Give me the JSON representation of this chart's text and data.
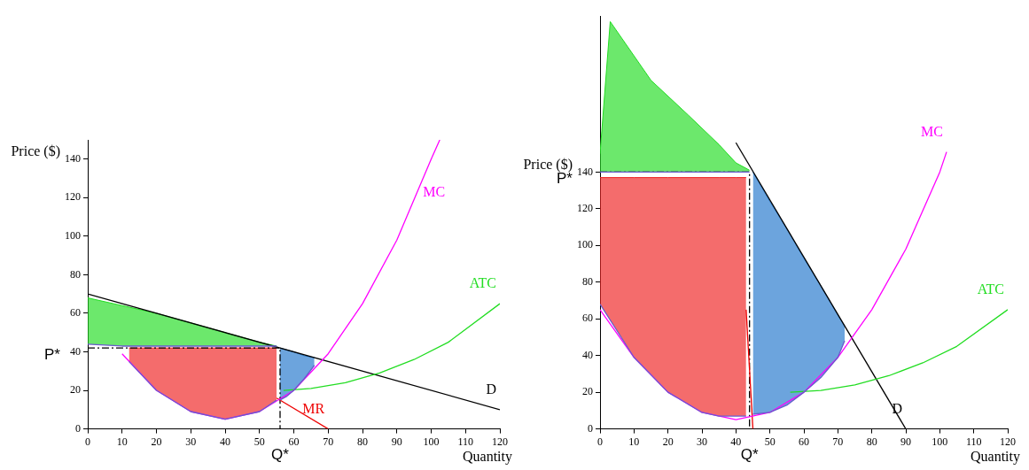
{
  "chart_data": [
    {
      "type": "line",
      "xlabel": "Quantity",
      "ylabel": "Price ($)",
      "xlim": [
        0,
        120
      ],
      "ylim": [
        0,
        150
      ],
      "xticks": [
        0,
        10,
        20,
        30,
        40,
        50,
        60,
        70,
        80,
        90,
        100,
        110,
        120
      ],
      "yticks": [
        0,
        20,
        40,
        60,
        80,
        100,
        120,
        140
      ],
      "grid": false,
      "legend": false,
      "marker": "none",
      "series": [
        {
          "color": "#6a5acd",
          "x": [
            0,
            10,
            20,
            30,
            40,
            50,
            55
          ],
          "values": [
            44,
            43,
            43,
            43,
            43,
            43,
            43
          ]
        },
        {
          "type": "area",
          "color": "#22dd22",
          "x": [
            0,
            10,
            20,
            30,
            40,
            50,
            55
          ],
          "values": [
            68,
            64,
            60,
            55,
            50,
            45,
            43
          ]
        },
        {
          "color": "#6a5acd",
          "x": [
            12,
            20,
            30,
            40,
            50,
            55
          ],
          "values": [
            35,
            20,
            9,
            5,
            9,
            15
          ]
        },
        {
          "type": "area",
          "color": "#ee2222",
          "x": [
            12,
            20,
            30,
            40,
            50,
            55
          ],
          "values": [
            42,
            42,
            42,
            42,
            42,
            42
          ]
        },
        {
          "color": "#6a5acd",
          "x": [
            56,
            58,
            60,
            63,
            66
          ],
          "values": [
            15,
            17,
            20,
            26,
            33
          ]
        },
        {
          "type": "area",
          "color": "#2277cc",
          "x": [
            56,
            58,
            60,
            63,
            66
          ],
          "values": [
            42,
            41,
            40,
            38,
            37
          ]
        },
        {
          "name": "MC",
          "color": "#ff00ff",
          "x": [
            10,
            20,
            30,
            40,
            50,
            60,
            70,
            80,
            90,
            100,
            102.5
          ],
          "values": [
            39,
            20,
            9,
            5,
            9,
            20,
            39,
            65,
            98,
            140,
            150
          ]
        },
        {
          "name": "ATC",
          "color": "#22dd22",
          "x": [
            57,
            65,
            75,
            85,
            95,
            105,
            120
          ],
          "values": [
            20,
            21,
            24,
            29,
            36,
            45,
            65
          ]
        },
        {
          "name": "D",
          "color": "#000000",
          "x": [
            0,
            120
          ],
          "values": [
            70,
            10
          ]
        },
        {
          "name": "MR",
          "color": "#ee0000",
          "x": [
            55,
            70
          ],
          "values": [
            16,
            0
          ]
        },
        {
          "color": "#000000",
          "line_style": "dashed",
          "x": [
            0,
            56,
            56
          ],
          "values": [
            42,
            42,
            0
          ]
        }
      ],
      "annotations": [
        {
          "text": "P*",
          "x": 0,
          "y": 42
        },
        {
          "text": "Q*",
          "x": 56,
          "y": 0
        }
      ]
    },
    {
      "type": "line",
      "xlabel": "Quantity",
      "ylabel": "Price ($)",
      "xlim": [
        0,
        120
      ],
      "ylim": [
        0,
        225
      ],
      "xticks": [
        0,
        10,
        20,
        30,
        40,
        50,
        60,
        70,
        80,
        90,
        100,
        110,
        120
      ],
      "yticks": [
        0,
        20,
        40,
        60,
        80,
        100,
        120,
        140
      ],
      "grid": false,
      "legend": false,
      "marker": "none",
      "series": [
        {
          "color": "#6a5acd",
          "x": [
            0,
            3,
            15,
            26,
            35,
            40,
            44
          ],
          "values": [
            140,
            140,
            140,
            140,
            140,
            140,
            140
          ]
        },
        {
          "type": "area",
          "color": "#22dd22",
          "x": [
            0,
            3,
            15,
            26,
            35,
            40,
            44
          ],
          "values": [
            150,
            222,
            190,
            171,
            155,
            145,
            141
          ]
        },
        {
          "color": "#6a5acd",
          "x": [
            0,
            10,
            20,
            30,
            35,
            40,
            43
          ],
          "values": [
            68,
            39,
            20,
            9,
            7,
            7,
            7
          ]
        },
        {
          "type": "area",
          "color": "#ee2222",
          "x": [
            0,
            10,
            20,
            30,
            35,
            40,
            43
          ],
          "values": [
            137,
            137,
            137,
            137,
            137,
            137,
            137
          ]
        },
        {
          "color": "#6a5acd",
          "x": [
            45,
            50,
            55,
            60,
            65,
            70,
            72
          ],
          "values": [
            8,
            9,
            13,
            20,
            28,
            39,
            48
          ]
        },
        {
          "type": "area",
          "color": "#2277cc",
          "x": [
            45,
            50,
            55,
            60,
            65,
            70,
            72
          ],
          "values": [
            140,
            124,
            109,
            93,
            78,
            62,
            56
          ]
        },
        {
          "name": "MC",
          "color": "#ff00ff",
          "x": [
            0,
            10,
            20,
            30,
            40,
            50,
            60,
            70,
            80,
            90,
            100,
            102
          ],
          "values": [
            65,
            39,
            20,
            9,
            5,
            9,
            20,
            39,
            65,
            98,
            140,
            151
          ]
        },
        {
          "name": "ATC",
          "color": "#22dd22",
          "x": [
            56,
            65,
            75,
            85,
            95,
            105,
            120
          ],
          "values": [
            20,
            21,
            24,
            29,
            36,
            45,
            65
          ]
        },
        {
          "name": "D",
          "color": "#000000",
          "x": [
            40,
            90
          ],
          "values": [
            156,
            0
          ]
        },
        {
          "color": "#ee0000",
          "x": [
            43,
            45
          ],
          "values": [
            65,
            0
          ]
        },
        {
          "color": "#000000",
          "line_style": "dashed",
          "x": [
            0,
            44,
            44
          ],
          "values": [
            140,
            140,
            0
          ]
        }
      ],
      "annotations": [
        {
          "text": "P*",
          "x": 0,
          "y": 140
        },
        {
          "text": "Q*",
          "x": 44,
          "y": 0
        }
      ]
    }
  ]
}
